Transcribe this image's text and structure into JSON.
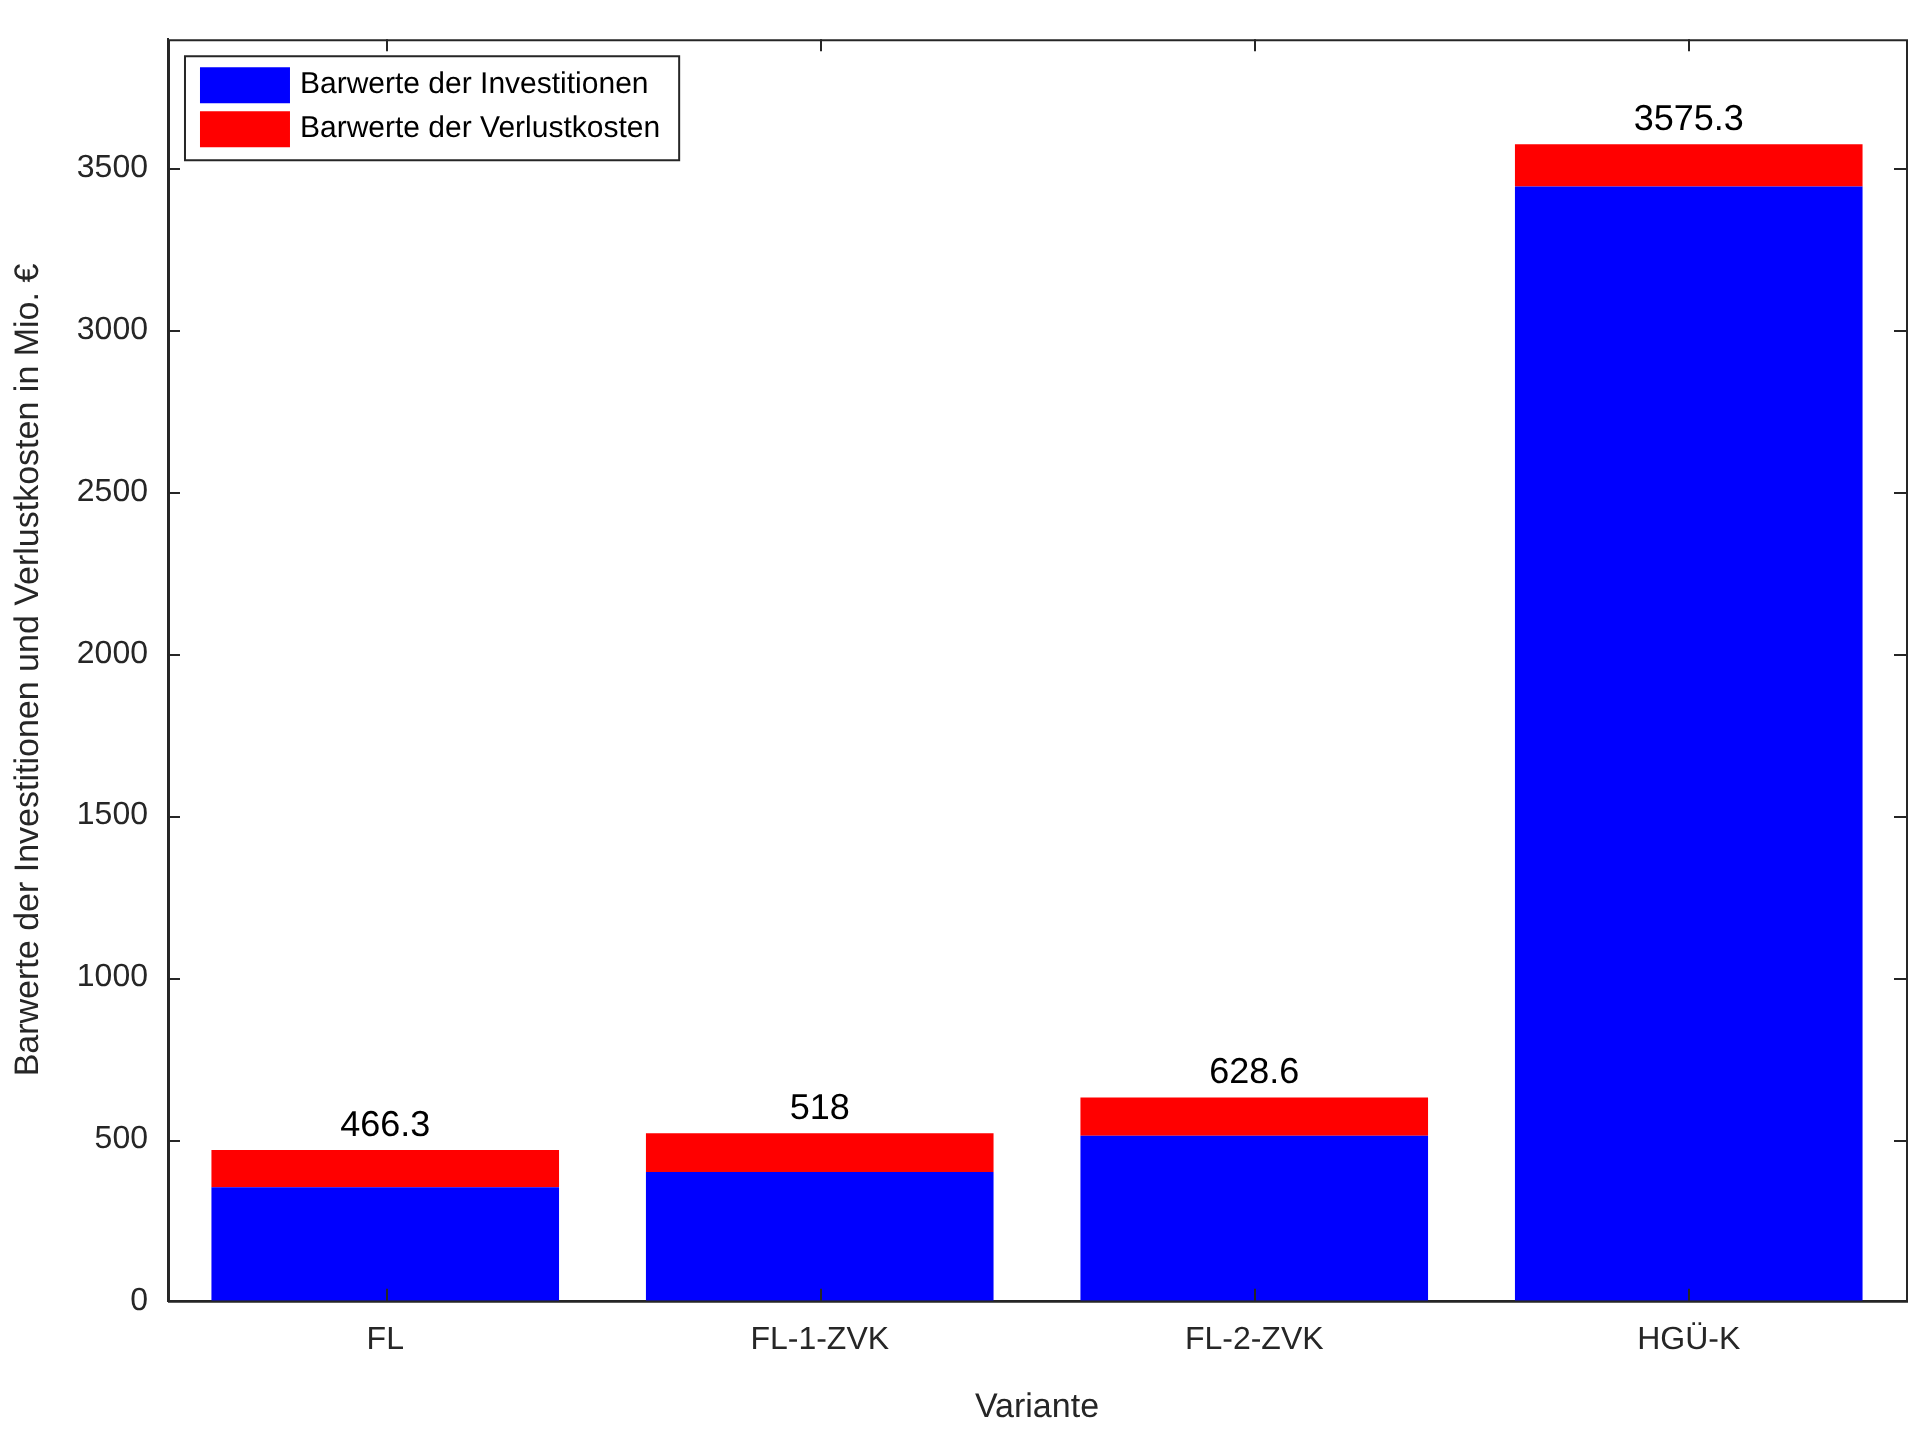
{
  "chart_data": {
    "type": "bar",
    "stacked": true,
    "xlabel": "Variante",
    "ylabel": "Barwerte der Investitionen und Verlustkosten in Mio. €",
    "categories": [
      "FL",
      "FL-1-ZVK",
      "FL-2-ZVK",
      "HGÜ-K"
    ],
    "series": [
      {
        "name": "Barwerte der Investitionen",
        "color": "#0000ff",
        "values": [
          351,
          398,
          510,
          3445
        ]
      },
      {
        "name": "Barwerte der Verlustkosten",
        "color": "#ff0000",
        "values": [
          115.3,
          120,
          118.6,
          130.3
        ]
      }
    ],
    "totals": [
      "466.3",
      "518",
      "628.6",
      "3575.3"
    ],
    "ylim": [
      0,
      3900
    ],
    "yticks": [
      0,
      500,
      1000,
      1500,
      2000,
      2500,
      3000,
      3500
    ],
    "grid": false,
    "legend": "top left"
  }
}
